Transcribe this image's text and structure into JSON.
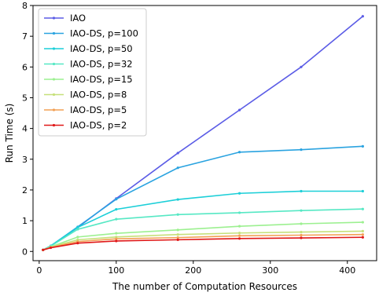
{
  "chart_data": {
    "type": "line",
    "title": "",
    "xlabel": "The number of Computation Resources",
    "ylabel": "Run Time (s)",
    "xlim": [
      -8,
      438
    ],
    "ylim": [
      -0.3,
      8.0
    ],
    "xticks": [
      0,
      100,
      200,
      300,
      400
    ],
    "yticks": [
      0,
      1,
      2,
      3,
      4,
      5,
      6,
      7,
      8
    ],
    "grid": false,
    "legend_location": "top-left",
    "x": [
      5,
      15,
      50,
      100,
      180,
      260,
      340,
      420
    ],
    "series": [
      {
        "name": "IAO",
        "color": "#5b5ce6",
        "values": [
          0.05,
          0.18,
          0.78,
          1.72,
          3.2,
          4.6,
          6.0,
          7.65
        ]
      },
      {
        "name": "IAO-DS, p=100",
        "color": "#2aa3e0",
        "values": [
          0.05,
          0.18,
          0.8,
          1.7,
          2.72,
          3.23,
          3.31,
          3.42
        ]
      },
      {
        "name": "IAO-DS, p=50",
        "color": "#1ccfd8",
        "values": [
          0.05,
          0.18,
          0.78,
          1.37,
          1.69,
          1.89,
          1.96,
          1.96
        ]
      },
      {
        "name": "IAO-DS, p=32",
        "color": "#56e8c4",
        "values": [
          0.05,
          0.17,
          0.72,
          1.05,
          1.2,
          1.26,
          1.33,
          1.38
        ]
      },
      {
        "name": "IAO-DS, p=15",
        "color": "#9cf090",
        "values": [
          0.05,
          0.15,
          0.47,
          0.59,
          0.7,
          0.82,
          0.9,
          0.95
        ]
      },
      {
        "name": "IAO-DS, p=8",
        "color": "#c6e07a",
        "values": [
          0.05,
          0.14,
          0.38,
          0.47,
          0.55,
          0.6,
          0.63,
          0.66
        ]
      },
      {
        "name": "IAO-DS, p=5",
        "color": "#f2a055",
        "values": [
          0.05,
          0.13,
          0.32,
          0.41,
          0.45,
          0.51,
          0.53,
          0.55
        ]
      },
      {
        "name": "IAO-DS, p=2",
        "color": "#e01818",
        "values": [
          0.05,
          0.12,
          0.27,
          0.34,
          0.38,
          0.42,
          0.44,
          0.46
        ]
      }
    ]
  }
}
